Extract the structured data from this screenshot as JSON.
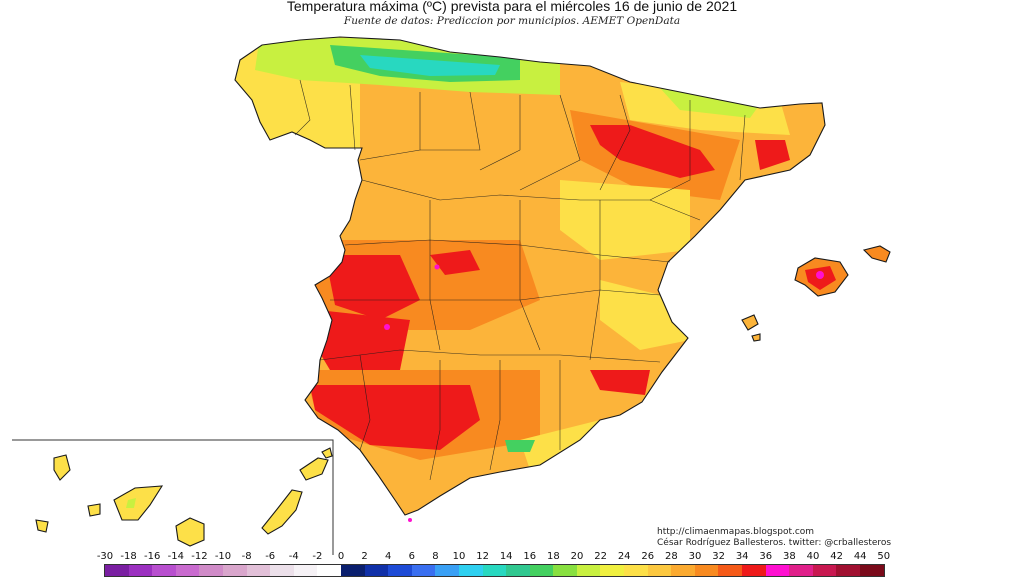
{
  "title": "Temperatura máxima (ºC) prevista para el miércoles 16 de junio de 2021",
  "subtitle": "Fuente de datos: Prediccion por municipios. AEMET OpenData",
  "credits": {
    "blog": "http://climaenmapas.blogspot.com",
    "author": "César Rodríguez Ballesteros. twitter: @crballesteros"
  },
  "legend": {
    "ticks": [
      "-30",
      "-18",
      "-16",
      "-14",
      "-12",
      "-10",
      "-8",
      "-6",
      "-4",
      "-2",
      "0",
      "2",
      "4",
      "6",
      "8",
      "10",
      "12",
      "14",
      "16",
      "18",
      "20",
      "22",
      "24",
      "26",
      "28",
      "30",
      "32",
      "34",
      "36",
      "38",
      "40",
      "42",
      "44",
      "50"
    ],
    "colors": [
      "#7a1fa2",
      "#9b30c0",
      "#b84fcf",
      "#c96bcf",
      "#d08bc8",
      "#d9a6cc",
      "#e2c0d8",
      "#ece0ea",
      "#f6f2f6",
      "#ffffff",
      "#0a1f6e",
      "#1030a8",
      "#1e4bd6",
      "#3a6ff0",
      "#3aa0f5",
      "#2fd0f0",
      "#28d8c0",
      "#30c890",
      "#44d060",
      "#88e040",
      "#c8f040",
      "#f0f040",
      "#fde048",
      "#fcc840",
      "#fbaa30",
      "#f88a20",
      "#f55a18",
      "#ee1a1a",
      "#ff10d0",
      "#e0208a",
      "#c81850",
      "#a01030",
      "#7a0a1a"
    ]
  },
  "map": {
    "region": "Península Ibérica, Baleares y Canarias",
    "colors": {
      "base": "#fcb43a",
      "warm": "#f88a20",
      "hot": "#ee1a1a",
      "extreme": "#ff10d0",
      "mild": "#fde048",
      "cool": "#c8f040",
      "cold": "#44d060",
      "coldest": "#28d8c0",
      "border": "#1a1a1a"
    }
  }
}
